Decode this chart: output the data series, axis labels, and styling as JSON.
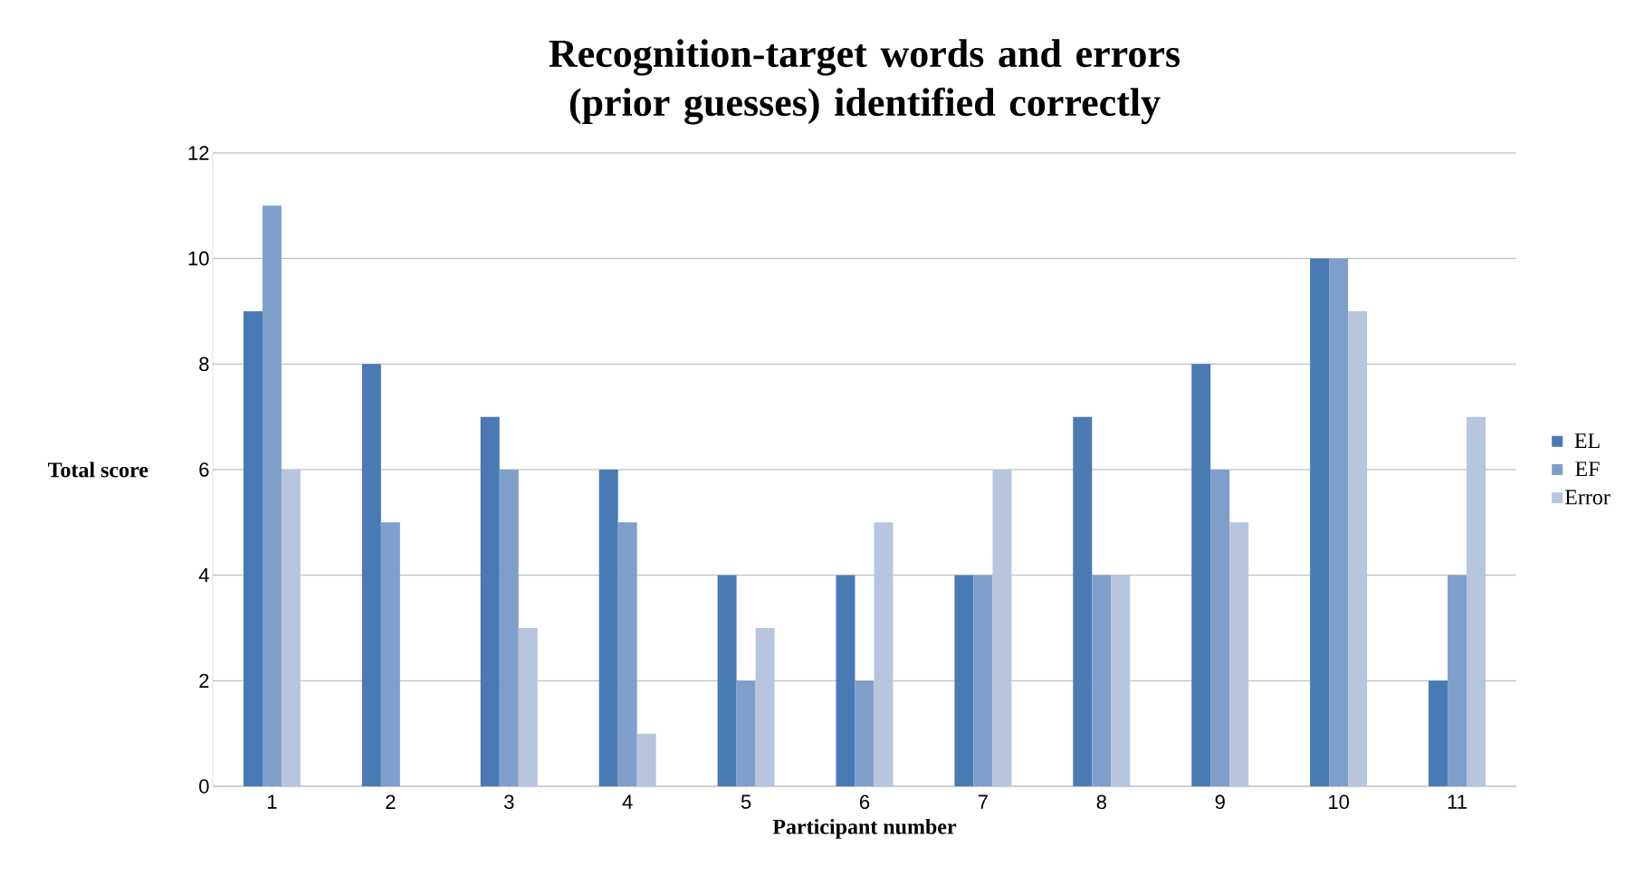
{
  "chart_data": {
    "type": "bar",
    "title": "Recognition-target words and errors (prior guesses) identified correctly",
    "xlabel": "Participant number",
    "ylabel": "Total score",
    "categories": [
      "1",
      "2",
      "3",
      "4",
      "5",
      "6",
      "7",
      "8",
      "9",
      "10",
      "11"
    ],
    "series": [
      {
        "name": "EL",
        "color": "#4a7ab4",
        "values": [
          9,
          8,
          7,
          6,
          4,
          4,
          4,
          7,
          8,
          10,
          2
        ]
      },
      {
        "name": "EF",
        "color": "#7f9fcb",
        "values": [
          11,
          5,
          6,
          5,
          2,
          2,
          4,
          4,
          6,
          10,
          4
        ]
      },
      {
        "name": "Error",
        "color": "#b7c5df",
        "values": [
          6,
          0,
          3,
          1,
          3,
          5,
          6,
          4,
          5,
          9,
          7
        ]
      }
    ],
    "ylim": [
      0,
      12
    ],
    "yticks": [
      0,
      2,
      4,
      6,
      8,
      10,
      12
    ],
    "grid": "y",
    "legend": "right"
  }
}
